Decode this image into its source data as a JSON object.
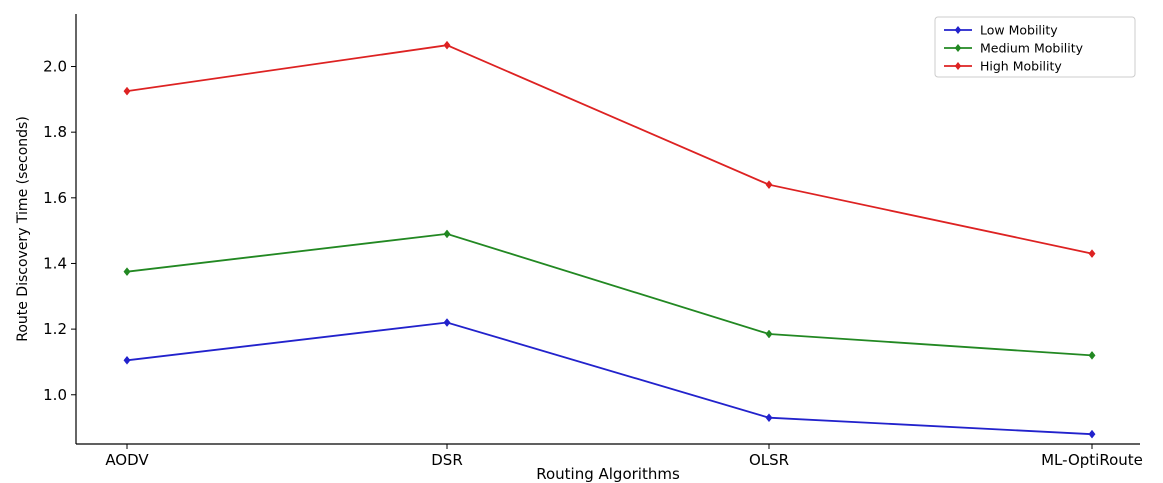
{
  "chart_data": {
    "type": "line",
    "categories": [
      "AODV",
      "DSR",
      "OLSR",
      "ML-OptiRoute"
    ],
    "series": [
      {
        "name": "Low Mobility",
        "color": "#2222cc",
        "values": [
          1.105,
          1.22,
          0.93,
          0.88
        ]
      },
      {
        "name": "Medium Mobility",
        "color": "#228822",
        "values": [
          1.375,
          1.49,
          1.185,
          1.12
        ]
      },
      {
        "name": "High Mobility",
        "color": "#dd2222",
        "values": [
          1.925,
          2.065,
          1.64,
          1.43
        ]
      }
    ],
    "title": "",
    "xlabel": "Routing Algorithms",
    "ylabel": "Route Discovery Time (seconds)",
    "ylim": [
      0.85,
      2.16
    ],
    "yticks": [
      "1.0",
      "1.2",
      "1.4",
      "1.6",
      "1.8",
      "2.0"
    ],
    "grid": false,
    "legend_position": "top-right",
    "marker": "diamond"
  }
}
